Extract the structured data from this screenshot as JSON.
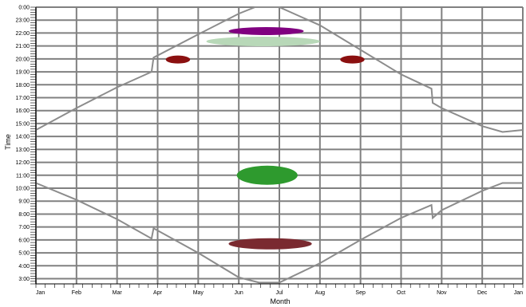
{
  "chart_data": {
    "type": "line",
    "title": "",
    "xlabel": "Month",
    "ylabel": "Time",
    "x_ticks": [
      "Jan",
      "Feb",
      "Mar",
      "Apr",
      "May",
      "Jun",
      "Jul",
      "Aug",
      "Sep",
      "Oct",
      "Nov",
      "Dec",
      "Jan"
    ],
    "y_ticks": [
      "3:00",
      "4:00",
      "5:00",
      "6:00",
      "7:00",
      "8:00",
      "9:00",
      "10:00",
      "11:00",
      "12:00",
      "13:00",
      "14:00",
      "15:00",
      "16:00",
      "17:00",
      "18:00",
      "19:00",
      "20:00",
      "21:00",
      "22:00",
      "23:00",
      "0:00"
    ],
    "xlim": [
      0,
      12
    ],
    "ylim": [
      2.6,
      24
    ],
    "grid": true,
    "colors": {
      "curve": "#8c8c8c",
      "grid": "#808080",
      "purple": "#800080",
      "pale_green": "#b8d8b8",
      "dark_red": "#8b1010",
      "green": "#2e9a2e",
      "maroon": "#7a2a30"
    },
    "series": [
      {
        "curve": "upper",
        "x": [
          0,
          1,
          2,
          2.85,
          2.9,
          4,
          5,
          5.4,
          6,
          7,
          8,
          9,
          9.75,
          9.78,
          10,
          11,
          11.5,
          12
        ],
        "y": [
          14.5,
          16.2,
          17.8,
          19.0,
          20.1,
          21.9,
          23.5,
          24.0,
          24.0,
          22.6,
          20.7,
          18.8,
          17.7,
          16.6,
          16.2,
          14.8,
          14.35,
          14.5
        ]
      },
      {
        "curve": "lower",
        "x": [
          0,
          1,
          2,
          2.85,
          2.9,
          4,
          5,
          5.5,
          6,
          7,
          8,
          9,
          9.75,
          9.78,
          10,
          11,
          11.5,
          12
        ],
        "y": [
          10.4,
          9.1,
          7.6,
          6.1,
          6.9,
          5.0,
          3.1,
          2.7,
          2.7,
          4.2,
          6.0,
          7.7,
          8.7,
          7.7,
          8.3,
          9.8,
          10.4,
          10.4
        ]
      }
    ],
    "shapes": [
      {
        "color": "purple",
        "x": [
          4.75,
          6.6
        ],
        "y_mid": 22.15
      },
      {
        "color": "pale_green",
        "x": [
          4.2,
          7.0
        ],
        "y_mid": 21.35
      },
      {
        "color": "dark_red",
        "x": [
          3.2,
          3.8
        ],
        "y_mid": 19.95
      },
      {
        "color": "dark_red",
        "x": [
          7.5,
          8.1
        ],
        "y_mid": 19.95
      },
      {
        "color": "green",
        "x": [
          4.95,
          6.45
        ],
        "y_mid": 11.0
      },
      {
        "color": "maroon",
        "x": [
          4.75,
          6.8
        ],
        "y_mid": 5.7
      }
    ]
  }
}
